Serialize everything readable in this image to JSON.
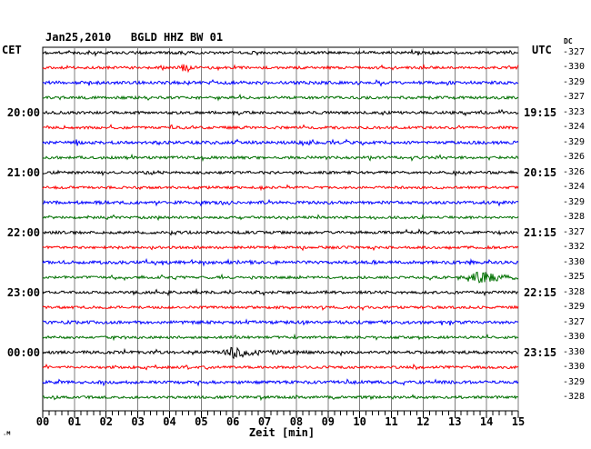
{
  "title": "Jan25,2010   BGLD HHZ BW 01",
  "header": {
    "left_tz": "CET",
    "right_tz": "UTC",
    "dc_label": "DC"
  },
  "x_axis": {
    "label": "Zeit [min]",
    "tick_labels": [
      "00",
      "01",
      "02",
      "03",
      "04",
      "05",
      "06",
      "07",
      "08",
      "09",
      "10",
      "11",
      "12",
      "13",
      "14",
      "15"
    ]
  },
  "watermark": ".M",
  "colors": {
    "black": "#000000",
    "red": "#ff0000",
    "blue": "#0000ff",
    "green": "#007000",
    "grid": "#7f7f7f",
    "frame": "#000000",
    "background": "#ffffff"
  },
  "chart_data": {
    "type": "line",
    "subtype": "helicorder-seismogram",
    "station_line": "BGLD HHZ BW 01",
    "date": "Jan25,2010",
    "minutes_per_line": 15,
    "x_range": [
      0,
      15
    ],
    "grid": "vertical-every-minute",
    "rows": [
      {
        "color": "black",
        "dc": -327,
        "cet": "",
        "utc": "",
        "noise": 1.5,
        "events": []
      },
      {
        "color": "red",
        "dc": -330,
        "cet": "",
        "utc": "",
        "noise": 1.4,
        "events": [
          {
            "center": 4.45,
            "rise": 0.12,
            "decay": 0.22,
            "amp": 2.6
          }
        ]
      },
      {
        "color": "blue",
        "dc": -329,
        "cet": "",
        "utc": "",
        "noise": 1.7,
        "events": []
      },
      {
        "color": "green",
        "dc": -327,
        "cet": "",
        "utc": "",
        "noise": 1.5,
        "events": []
      },
      {
        "color": "black",
        "dc": -323,
        "cet": "20:00",
        "utc": "19:15",
        "noise": 1.5,
        "events": []
      },
      {
        "color": "red",
        "dc": -324,
        "cet": "",
        "utc": "",
        "noise": 1.4,
        "events": []
      },
      {
        "color": "blue",
        "dc": -329,
        "cet": "",
        "utc": "",
        "noise": 1.7,
        "events": []
      },
      {
        "color": "green",
        "dc": -326,
        "cet": "",
        "utc": "",
        "noise": 1.5,
        "events": []
      },
      {
        "color": "black",
        "dc": -326,
        "cet": "21:00",
        "utc": "20:15",
        "noise": 1.5,
        "events": []
      },
      {
        "color": "red",
        "dc": -324,
        "cet": "",
        "utc": "",
        "noise": 1.4,
        "events": []
      },
      {
        "color": "blue",
        "dc": -329,
        "cet": "",
        "utc": "",
        "noise": 1.7,
        "events": []
      },
      {
        "color": "green",
        "dc": -328,
        "cet": "",
        "utc": "",
        "noise": 1.4,
        "events": []
      },
      {
        "color": "black",
        "dc": -327,
        "cet": "22:00",
        "utc": "21:15",
        "noise": 1.5,
        "events": []
      },
      {
        "color": "red",
        "dc": -332,
        "cet": "",
        "utc": "",
        "noise": 1.4,
        "events": []
      },
      {
        "color": "blue",
        "dc": -330,
        "cet": "",
        "utc": "",
        "noise": 1.7,
        "events": []
      },
      {
        "color": "green",
        "dc": -325,
        "cet": "",
        "utc": "",
        "noise": 1.4,
        "events": [
          {
            "center": 13.9,
            "rise": 0.3,
            "decay": 0.55,
            "amp": 5.5
          }
        ]
      },
      {
        "color": "black",
        "dc": -328,
        "cet": "23:00",
        "utc": "22:15",
        "noise": 1.5,
        "events": []
      },
      {
        "color": "red",
        "dc": -329,
        "cet": "",
        "utc": "",
        "noise": 1.4,
        "events": []
      },
      {
        "color": "blue",
        "dc": -327,
        "cet": "",
        "utc": "",
        "noise": 1.7,
        "events": []
      },
      {
        "color": "green",
        "dc": -330,
        "cet": "",
        "utc": "",
        "noise": 1.4,
        "events": []
      },
      {
        "color": "black",
        "dc": -330,
        "cet": "00:00",
        "utc": "23:15",
        "noise": 1.6,
        "events": [
          {
            "center": 6.1,
            "rise": 0.22,
            "decay": 0.6,
            "amp": 5.0
          }
        ]
      },
      {
        "color": "red",
        "dc": -330,
        "cet": "",
        "utc": "",
        "noise": 1.4,
        "events": []
      },
      {
        "color": "blue",
        "dc": -329,
        "cet": "",
        "utc": "",
        "noise": 1.7,
        "events": []
      },
      {
        "color": "green",
        "dc": -328,
        "cet": "",
        "utc": "",
        "noise": 1.4,
        "events": []
      }
    ]
  }
}
